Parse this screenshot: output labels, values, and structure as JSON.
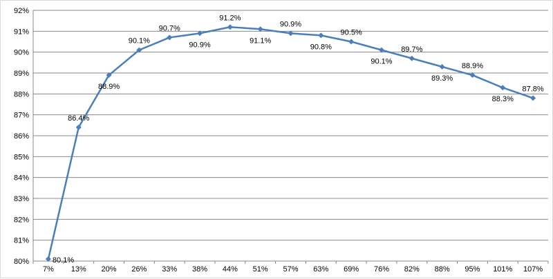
{
  "chart_data": {
    "type": "line",
    "title": "",
    "xlabel": "",
    "ylabel": "",
    "categories": [
      "7%",
      "13%",
      "20%",
      "26%",
      "33%",
      "38%",
      "44%",
      "51%",
      "57%",
      "63%",
      "69%",
      "76%",
      "82%",
      "88%",
      "95%",
      "101%",
      "107%"
    ],
    "series": [
      {
        "color": "#4a7ebb",
        "marker": "diamond",
        "values": [
          80.1,
          86.4,
          88.9,
          90.1,
          90.7,
          90.9,
          91.2,
          91.1,
          90.9,
          90.8,
          90.5,
          90.1,
          89.7,
          89.3,
          88.9,
          88.3,
          87.8
        ],
        "data_labels": [
          "80.1%",
          "86.4%",
          "88.9%",
          "90.1%",
          "90.7%",
          "90.9%",
          "91.2%",
          "91.1%",
          "90.9%",
          "90.8%",
          "90.5%",
          "90.1%",
          "89.7%",
          "89.3%",
          "88.9%",
          "88.3%",
          "87.8%"
        ]
      }
    ],
    "yticks": [
      "80%",
      "81%",
      "82%",
      "83%",
      "84%",
      "85%",
      "86%",
      "87%",
      "88%",
      "89%",
      "90%",
      "91%",
      "92%"
    ],
    "ylim": [
      80,
      92
    ],
    "grid": true,
    "legend": "none"
  }
}
